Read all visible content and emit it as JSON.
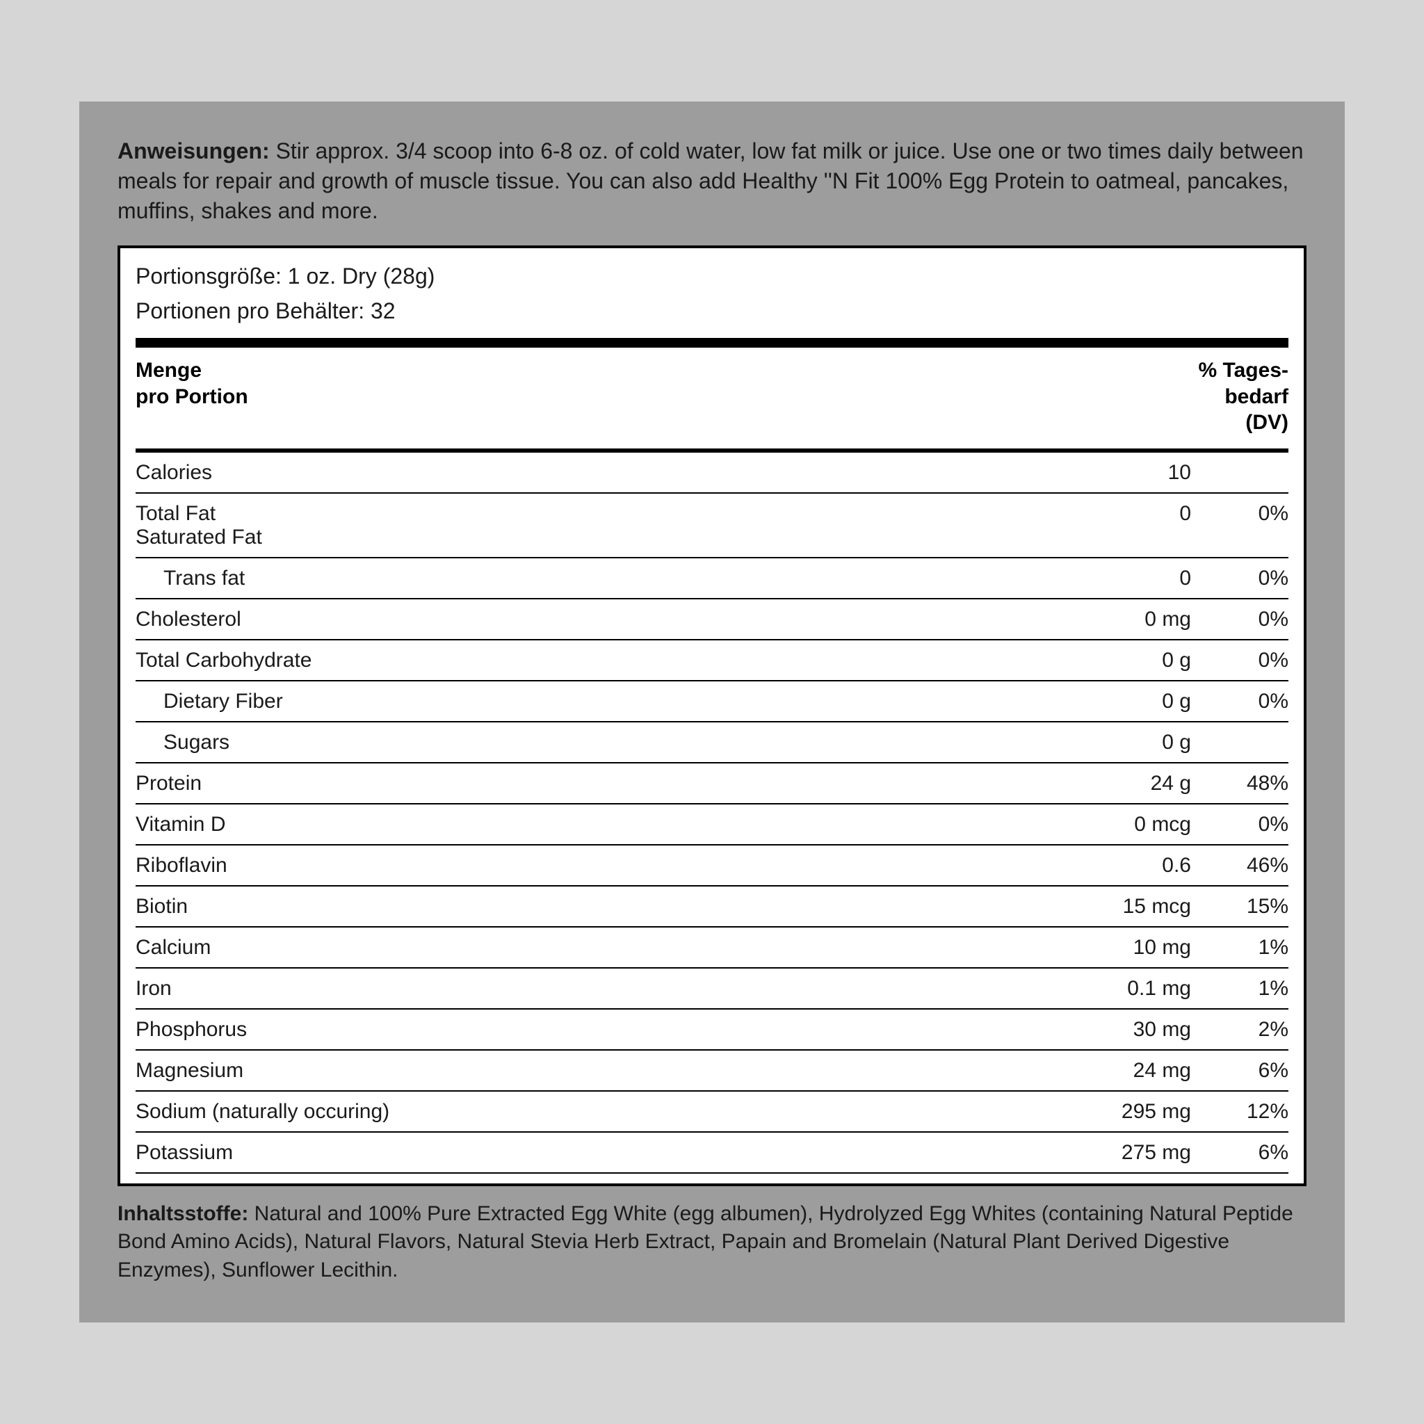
{
  "instructions": {
    "label": "Anweisungen:",
    "text": " Stir approx. 3/4 scoop into 6-8 oz. of cold water, low fat milk or juice. Use one or two times daily between meals for repair and growth of muscle tissue. You can also add Healthy ''N Fit 100% Egg Protein to oatmeal, pancakes, muffins, shakes and more."
  },
  "serving": {
    "size_label": "Portionsgröße: 1 oz. Dry (28g)",
    "per_container_label": "Portionen pro Behälter: 32"
  },
  "headers": {
    "left_line1": "Menge",
    "left_line2": "pro Portion",
    "right_line1": "% Tages-",
    "right_line2": "bedarf",
    "right_line3": "(DV)"
  },
  "rows": [
    {
      "label": "Calories",
      "amount": "10",
      "dv": "",
      "indent": false
    },
    {
      "label": "Total Fat",
      "sublabel": "Saturated Fat",
      "amount": "0",
      "dv": "0%",
      "indent": false
    },
    {
      "label": "Trans fat",
      "amount": "0",
      "dv": "0%",
      "indent": true
    },
    {
      "label": "Cholesterol",
      "amount": "0 mg",
      "dv": "0%",
      "indent": false
    },
    {
      "label": "Total Carbohydrate",
      "amount": "0 g",
      "dv": "0%",
      "indent": false
    },
    {
      "label": "Dietary Fiber",
      "amount": "0 g",
      "dv": "0%",
      "indent": true
    },
    {
      "label": "Sugars",
      "amount": "0 g",
      "dv": "",
      "indent": true
    },
    {
      "label": "Protein",
      "amount": "24 g",
      "dv": "48%",
      "indent": false
    },
    {
      "label": "Vitamin D",
      "amount": "0 mcg",
      "dv": "0%",
      "indent": false
    },
    {
      "label": "Riboflavin",
      "amount": "0.6",
      "dv": "46%",
      "indent": false
    },
    {
      "label": "Biotin",
      "amount": "15 mcg",
      "dv": "15%",
      "indent": false
    },
    {
      "label": "Calcium",
      "amount": "10 mg",
      "dv": "1%",
      "indent": false
    },
    {
      "label": "Iron",
      "amount": "0.1 mg",
      "dv": "1%",
      "indent": false
    },
    {
      "label": "Phosphorus",
      "amount": "30 mg",
      "dv": "2%",
      "indent": false
    },
    {
      "label": "Magnesium",
      "amount": "24 mg",
      "dv": "6%",
      "indent": false
    },
    {
      "label": "Sodium (naturally occuring)",
      "amount": "295 mg",
      "dv": "12%",
      "indent": false
    },
    {
      "label": "Potassium",
      "amount": "275 mg",
      "dv": "6%",
      "indent": false
    }
  ],
  "ingredients": {
    "label": "Inhaltsstoffe:",
    "text": " Natural and 100% Pure Extracted Egg White (egg albumen), Hydrolyzed Egg Whites (containing Natural Peptide Bond Amino Acids), Natural Flavors, Natural Stevia Herb Extract, Papain and Bromelain (Natural Plant Derived Digestive Enzymes), Sunflower Lecithin."
  },
  "colors": {
    "page_bg": "#d6d6d6",
    "panel_outer_bg": "#9d9d9d",
    "panel_bg": "#ffffff",
    "border": "#000000",
    "text": "#1a1a1a"
  }
}
